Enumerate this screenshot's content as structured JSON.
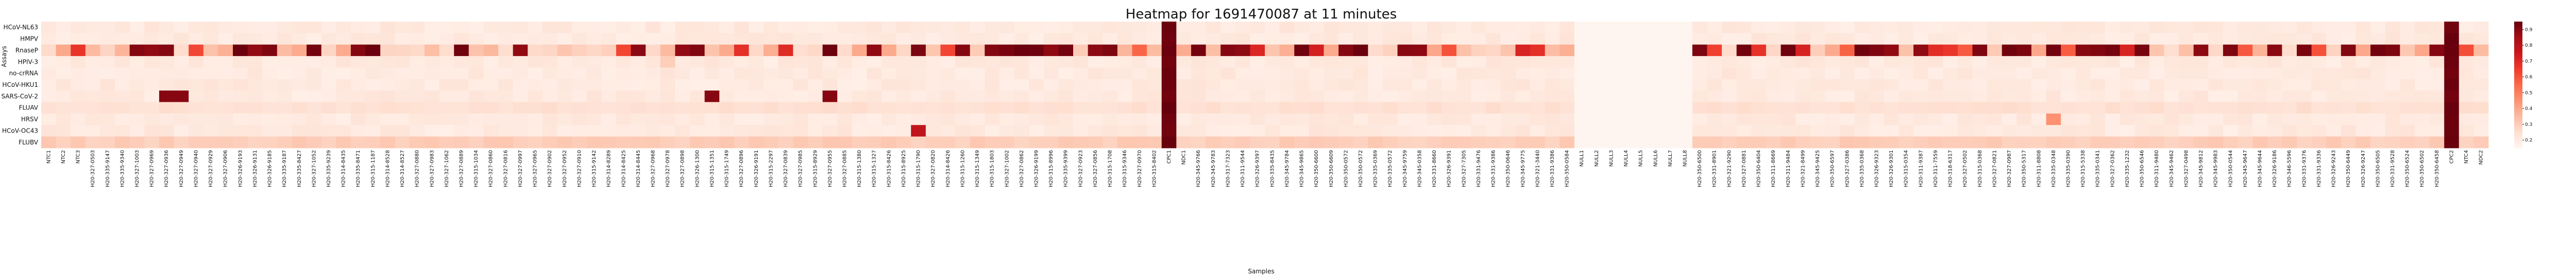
{
  "chart_data": {
    "type": "heatmap",
    "title": "Heatmap for 1691470087 at 11 minutes",
    "xlabel": "Samples",
    "ylabel": "Assays",
    "colormap": "Reds",
    "color_range": [
      0.15,
      0.95
    ],
    "colorbar_ticks": [
      0.2,
      0.3,
      0.4,
      0.5,
      0.6,
      0.7,
      0.8,
      0.9
    ],
    "assays": [
      "HCoV-NL63",
      "HMPV",
      "RnaseP",
      "HPIV-3",
      "no-crRNA",
      "HCoV-HKU1",
      "SARS-CoV-2",
      "FLUAV",
      "HRSV",
      "HCoV-OC43",
      "FLUBV"
    ],
    "samples": [
      "NTC1",
      "NTC2",
      "NTC3",
      "H20-327-0503",
      "H20-335-9147",
      "H20-335-9340",
      "H20-327-1003",
      "H20-327-0969",
      "H20-327-0936",
      "H20-327-0949",
      "H20-327-0940",
      "H20-327-0929",
      "H20-327-0906",
      "H20-326-9193",
      "H20-326-9131",
      "H20-326-9185",
      "H20-335-9187",
      "H20-335-8427",
      "H20-327-1052",
      "H20-335-9239",
      "H20-314-8435",
      "H20-335-8471",
      "H20-315-1187",
      "H20-314-8528",
      "H20-314-8527",
      "H20-327-0880",
      "H20-327-0983",
      "H20-327-1062",
      "H20-327-0889",
      "H20-315-1034",
      "H20-327-0860",
      "H20-327-0816",
      "H20-327-0997",
      "H20-327-0965",
      "H20-327-0902",
      "H20-327-0952",
      "H20-327-0910",
      "H20-315-9142",
      "H20-314-8289",
      "H20-314-8425",
      "H20-314-8445",
      "H20-327-0968",
      "H20-327-0978",
      "H20-327-0898",
      "H20-326-1300",
      "H20-315-1351",
      "H20-315-1749",
      "H20-327-0896",
      "H20-326-9191",
      "H20-315-2297",
      "H20-327-0839",
      "H20-327-0985",
      "H20-315-8929",
      "H20-327-0955",
      "H20-327-0885",
      "H20-315-1380",
      "H20-315-1327",
      "H20-315-8426",
      "H20-315-8925",
      "H20-315-1790",
      "H20-327-0820",
      "H20-314-8426",
      "H20-315-1260",
      "H20-315-1349",
      "H20-315-1803",
      "H20-327-1002",
      "H20-327-0862",
      "H20-326-9199",
      "H20-315-8996",
      "H20-335-9399",
      "H20-327-0923",
      "H20-327-0856",
      "H20-315-1708",
      "H20-315-9346",
      "H20-327-0970",
      "H20-315-8402",
      "CPC1",
      "NDC1",
      "H20-345-9766",
      "H20-345-9783",
      "H20-317-7323",
      "H20-311-9544",
      "H20-326-9397",
      "H20-335-8435",
      "H20-345-9784",
      "H20-345-9865",
      "H20-350-6600",
      "H20-350-6609",
      "H20-350-0572",
      "H20-350-0572",
      "H20-335-0369",
      "H20-335-0572",
      "H20-345-9759",
      "H20-345-0358",
      "H20-331-8660",
      "H20-326-9391",
      "H20-327-7305",
      "H20-331-9476",
      "H20-331-9386",
      "H20-350-0646",
      "H20-345-9775",
      "H20-321-3440",
      "H20-331-9386",
      "H20-350-0584",
      "NULL1",
      "NULL2",
      "NULL3",
      "NULL4",
      "NULL5",
      "NULL6",
      "NULL7",
      "NULL8",
      "H20-350-6500",
      "H20-331-8901",
      "H20-321-9290",
      "H20-327-0881",
      "H20-350-6404",
      "H20-311-8669",
      "H20-311-9484",
      "H20-321-8499",
      "H20-345-9425",
      "H20-350-6597",
      "H20-327-0386",
      "H20-335-0368",
      "H20-326-9323",
      "H20-326-9301",
      "H20-315-0354",
      "H20-311-9387",
      "H20-311-7559",
      "H20-318-6317",
      "H20-327-0502",
      "H20-315-0368",
      "H20-327-0821",
      "H20-327-0987",
      "H20-350-5317",
      "H20-311-8808",
      "H20-335-0348",
      "H20-335-0390",
      "H20-315-5338",
      "H20-335-0341",
      "H20-327-0362",
      "H20-335-1232",
      "H20-350-6546",
      "H20-311-9480",
      "H20-345-9462",
      "H20-327-0498",
      "H20-345-9812",
      "H20-345-9983",
      "H20-350-0544",
      "H20-345-9647",
      "H20-345-9644",
      "H20-326-9186",
      "H20-346-5596",
      "H20-331-9376",
      "H20-331-9336",
      "H20-326-9243",
      "H20-350-6449",
      "H20-326-9247",
      "H20-350-6505",
      "H20-331-9528",
      "H20-350-6524",
      "H20-350-6502",
      "H20-350-6458",
      "CPC2",
      "NTC4",
      "NDC2"
    ]
  }
}
